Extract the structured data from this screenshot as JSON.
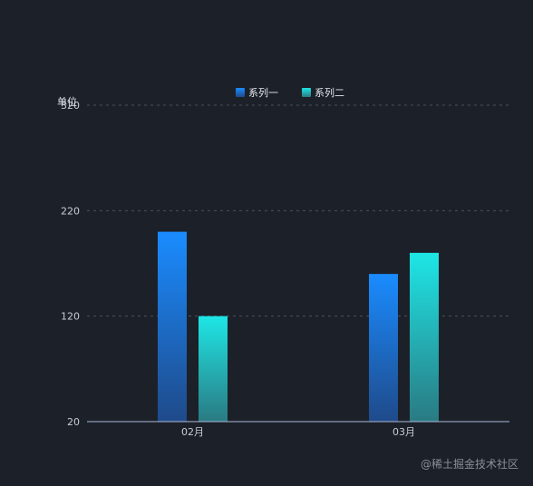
{
  "chart_data": {
    "type": "bar",
    "categories": [
      "02月",
      "03月"
    ],
    "series": [
      {
        "name": "系列一",
        "values": [
          200,
          160
        ],
        "color_top": "#1a8cff",
        "color_bottom": "#1f4a8a"
      },
      {
        "name": "系列二",
        "values": [
          120,
          180
        ],
        "color_top": "#1ee6e6",
        "color_bottom": "#2a7a82"
      }
    ],
    "ylabel": "单位",
    "ylim": [
      20,
      320
    ],
    "yticks": [
      20,
      120,
      220,
      320
    ],
    "grid": true,
    "legend": "top-center"
  },
  "watermark": "@稀土掘金技术社区"
}
